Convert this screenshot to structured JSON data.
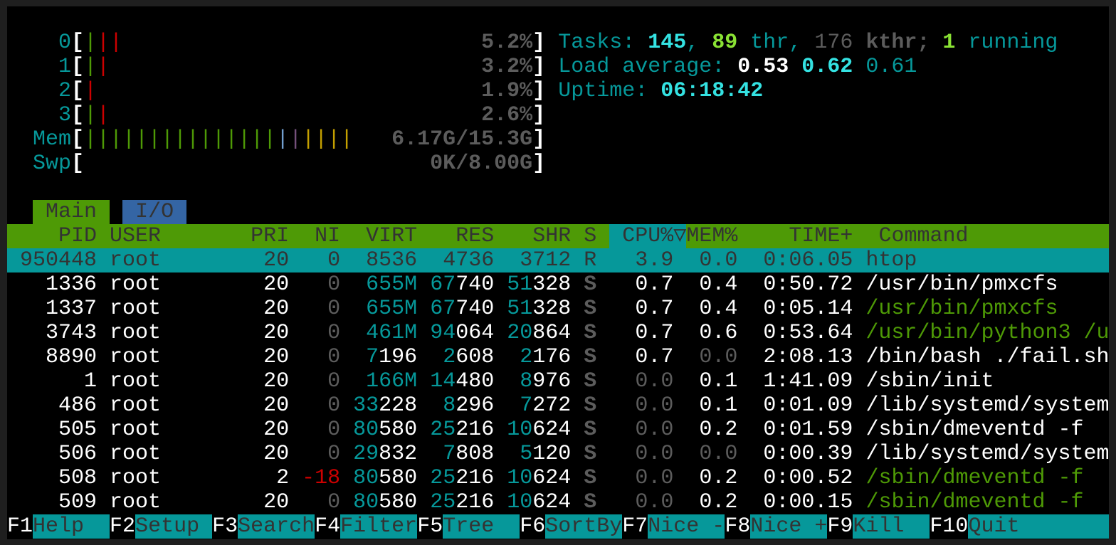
{
  "colors": {
    "teal": "#06989a",
    "green": "#4e9a06",
    "blue_tab": "#3465a4",
    "cyan": "#34e2e2",
    "bright_green": "#8ae234",
    "red": "#cc0000",
    "yellow": "#c4a000",
    "magenta": "#75507b",
    "dim": "#5c5c5c"
  },
  "meters": {
    "cpus": [
      {
        "label": "0",
        "normal_segments": 1,
        "kernel_segments": 2,
        "value": "5.2%"
      },
      {
        "label": "1",
        "normal_segments": 1,
        "kernel_segments": 1,
        "value": "3.2%"
      },
      {
        "label": "2",
        "normal_segments": 0,
        "kernel_segments": 1,
        "value": "1.9%"
      },
      {
        "label": "3",
        "normal_segments": 1,
        "kernel_segments": 1,
        "value": "2.6%"
      }
    ],
    "mem": {
      "label": "Mem",
      "used_segments": 15,
      "buffers_segments": 1,
      "shared_segments": 1,
      "cache_segments": 4,
      "value": "6.17G/15.3G"
    },
    "swp": {
      "label": "Swp",
      "value": "0K/8.00G"
    }
  },
  "summary": {
    "tasks_label": "Tasks: ",
    "tasks": "145",
    "threads": "89",
    "threads_label": " thr, ",
    "kthreads": "176",
    "kthreads_label": " kthr; ",
    "running": "1",
    "running_label": " running",
    "load_label": "Load average: ",
    "load1": "0.53",
    "load5": "0.62",
    "load15": "0.61",
    "uptime_label": "Uptime: ",
    "uptime": "06:18:42"
  },
  "tabs": [
    {
      "label": "Main",
      "active": true
    },
    {
      "label": "I/O",
      "active": false
    }
  ],
  "header": {
    "pid": "PID",
    "user": "USER",
    "pri": "PRI",
    "ni": "NI",
    "virt": "VIRT",
    "res": "RES",
    "shr": "SHR",
    "s": "S",
    "cpu": "CPU%",
    "sort_icon": "▽",
    "mem": "MEM%",
    "time": "TIME+",
    "command": "Command"
  },
  "processes": [
    {
      "pid": "950448",
      "user": "root",
      "pri": "20",
      "ni": "0",
      "virt": "8536",
      "res": "4736",
      "shr": "3712",
      "s": "R",
      "cpu": "3.9",
      "mem": "0.0",
      "time": "0:06.05",
      "command": "htop",
      "selected": true,
      "thread": false
    },
    {
      "pid": "1336",
      "user": "root",
      "pri": "20",
      "ni": "0",
      "virt": "655M",
      "res": "67740",
      "shr": "51328",
      "s": "S",
      "cpu": "0.7",
      "mem": "0.4",
      "time": "0:50.72",
      "command": "/usr/bin/pmxcfs",
      "thread": false
    },
    {
      "pid": "1337",
      "user": "root",
      "pri": "20",
      "ni": "0",
      "virt": "655M",
      "res": "67740",
      "shr": "51328",
      "s": "S",
      "cpu": "0.7",
      "mem": "0.4",
      "time": "0:05.14",
      "command": "/usr/bin/pmxcfs",
      "thread": true
    },
    {
      "pid": "3743",
      "user": "root",
      "pri": "20",
      "ni": "0",
      "virt": "461M",
      "res": "94064",
      "shr": "20864",
      "s": "S",
      "cpu": "0.7",
      "mem": "0.6",
      "time": "0:53.64",
      "command": "/usr/bin/python3 /u",
      "thread": true
    },
    {
      "pid": "8890",
      "user": "root",
      "pri": "20",
      "ni": "0",
      "virt": "7196",
      "res": "2608",
      "shr": "2176",
      "s": "S",
      "cpu": "0.7",
      "mem": "0.0",
      "time": "2:08.13",
      "command": "/bin/bash ./fail.sh",
      "thread": false
    },
    {
      "pid": "1",
      "user": "root",
      "pri": "20",
      "ni": "0",
      "virt": "166M",
      "res": "14480",
      "shr": "8976",
      "s": "S",
      "cpu": "0.0",
      "mem": "0.1",
      "time": "1:41.09",
      "command": "/sbin/init",
      "thread": false
    },
    {
      "pid": "486",
      "user": "root",
      "pri": "20",
      "ni": "0",
      "virt": "33228",
      "res": "8296",
      "shr": "7272",
      "s": "S",
      "cpu": "0.0",
      "mem": "0.1",
      "time": "0:01.09",
      "command": "/lib/systemd/system",
      "thread": false
    },
    {
      "pid": "505",
      "user": "root",
      "pri": "20",
      "ni": "0",
      "virt": "80580",
      "res": "25216",
      "shr": "10624",
      "s": "S",
      "cpu": "0.0",
      "mem": "0.2",
      "time": "0:01.59",
      "command": "/sbin/dmeventd -f",
      "thread": false
    },
    {
      "pid": "506",
      "user": "root",
      "pri": "20",
      "ni": "0",
      "virt": "29832",
      "res": "7808",
      "shr": "5120",
      "s": "S",
      "cpu": "0.0",
      "mem": "0.0",
      "time": "0:00.39",
      "command": "/lib/systemd/system",
      "thread": false
    },
    {
      "pid": "508",
      "user": "root",
      "pri": "2",
      "ni": "-18",
      "virt": "80580",
      "res": "25216",
      "shr": "10624",
      "s": "S",
      "cpu": "0.0",
      "mem": "0.2",
      "time": "0:00.52",
      "command": "/sbin/dmeventd -f",
      "thread": true
    },
    {
      "pid": "509",
      "user": "root",
      "pri": "20",
      "ni": "0",
      "virt": "80580",
      "res": "25216",
      "shr": "10624",
      "s": "S",
      "cpu": "0.0",
      "mem": "0.2",
      "time": "0:00.15",
      "command": "/sbin/dmeventd -f",
      "thread": true
    }
  ],
  "function_keys": [
    {
      "key": "F1",
      "label": "Help  "
    },
    {
      "key": "F2",
      "label": "Setup "
    },
    {
      "key": "F3",
      "label": "Search"
    },
    {
      "key": "F4",
      "label": "Filter"
    },
    {
      "key": "F5",
      "label": "Tree  "
    },
    {
      "key": "F6",
      "label": "SortBy"
    },
    {
      "key": "F7",
      "label": "Nice -"
    },
    {
      "key": "F8",
      "label": "Nice +"
    },
    {
      "key": "F9",
      "label": "Kill  "
    },
    {
      "key": "F10",
      "label": "Quit"
    }
  ]
}
